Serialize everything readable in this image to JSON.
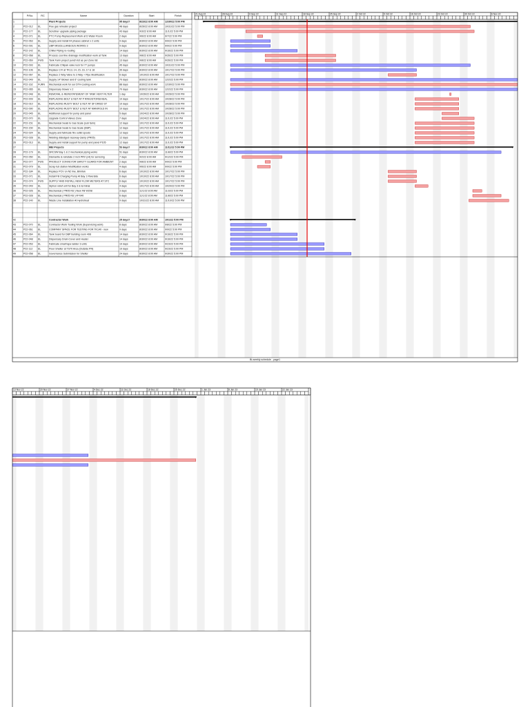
{
  "page1": {
    "table": {
      "header": [
        "P/No.",
        "RC",
        "Name",
        "Duration",
        "Start",
        "Finish"
      ],
      "rows": [
        {
          "id": "1",
          "pno": "",
          "rc": "",
          "name": "Plant Projects",
          "duration": "95 days?",
          "start": "8/23/22 8:00 AM",
          "finish": "12/30/22 5:00 PM",
          "type": "summary"
        },
        {
          "id": "2",
          "pno": "P22-012",
          "rc": "EL",
          "name": "Flue gas reheater project",
          "duration": "48 days",
          "start": "8/26/22 8:00 AM",
          "finish": "10/31/22 5:00 PM",
          "type": "task",
          "color": "#f4a0a0"
        },
        {
          "id": "3",
          "pno": "P22-177",
          "rc": "EL",
          "name": "Scrubber upgrade piping package",
          "duration": "43 days",
          "start": "9/3/22 8:00 AM",
          "finish": "11/1/22 5:00 PM",
          "type": "task",
          "color": "#f4a0a0"
        },
        {
          "id": "4",
          "pno": "P22-071",
          "rc": "EL",
          "name": "PTC Pump Replacement Work at D Water Room",
          "duration": "2 days",
          "start": "9/6/22 8:00 AM",
          "finish": "9/7/22 5:00 PM",
          "type": "task",
          "color": "#f4a0a0"
        },
        {
          "id": "5",
          "pno": "P22-063",
          "rc": "EL",
          "name": "Supply and install 04 phases cabinet x 2 units",
          "duration": "9 days",
          "start": "8/30/22 8:00 AM",
          "finish": "9/9/22 5:00 PM",
          "type": "task",
          "color": "#9a9aff"
        },
        {
          "id": "6",
          "pno": "P22-091",
          "rc": "EL",
          "name": "UBP MISCELLANEOUS WORKS 3",
          "duration": "9 days",
          "start": "8/30/22 8:00 AM",
          "finish": "9/9/22 5:00 PM",
          "type": "task",
          "color": "#9a9aff"
        },
        {
          "id": "7",
          "pno": "P22-142",
          "rc": "EL",
          "name": "Chiller Piping re-routing",
          "duration": "14 days",
          "start": "8/30/22 8:00 AM",
          "finish": "9/16/22 5:00 PM",
          "type": "task",
          "color": "#9a9aff"
        },
        {
          "id": "8",
          "pno": "P22-068",
          "rc": "EL",
          "name": "Process cool line drainage modification work at Tank",
          "duration": "13 days",
          "start": "9/8/22 8:00 AM",
          "finish": "9/26/22 5:00 PM",
          "type": "task",
          "color": "#f4a0a0"
        },
        {
          "id": "9",
          "pno": "P22-069",
          "rc": "FWS",
          "name": "Tank Farm project punch list as per Zone list",
          "duration": "13 days",
          "start": "9/8/22 8:00 AM",
          "finish": "9/26/22 5:00 PM",
          "type": "task",
          "color": "#f4a0a0"
        },
        {
          "id": "10",
          "pno": "P22-093",
          "rc": "EL",
          "name": "Fabricate Chilpak valve lock for 77 pumps",
          "duration": "45 days",
          "start": "8/30/22 8:00 AM",
          "finish": "10/31/22 5:00 PM",
          "type": "task",
          "color": "#9a9aff"
        },
        {
          "id": "11",
          "pno": "P22-106",
          "rc": "EL",
          "name": "Replace C/V at TK13, 14, 15, 16, 17 & 18",
          "duration": "35 days",
          "start": "8/30/22 8:00 AM",
          "finish": "10/17/22 5:00 PM",
          "type": "task",
          "color": "#9a9aff"
        },
        {
          "id": "12",
          "pno": "P22-067",
          "rc": "EL",
          "name": "Replace 2 Way Valve to 3 Way + Pipe Modification",
          "duration": "6 days",
          "start": "10/10/22 8:00 AM",
          "finish": "10/17/22 5:00 PM",
          "type": "task",
          "color": "#f4a0a0"
        },
        {
          "id": "13",
          "pno": "P22-049",
          "rc": "EL",
          "name": "Supply 14\" Blower and 6\" cooling tank",
          "duration": "70 days",
          "start": "8/30/22 8:00 AM",
          "finish": "12/2/22 5:00 PM",
          "type": "task",
          "color": "#9a9aff"
        },
        {
          "id": "14",
          "pno": "P22-162",
          "rc": "FURN",
          "name": "Mechanical work for our DTH cooling work",
          "duration": "88 days",
          "start": "8/30/22 8:00 AM",
          "finish": "12/30/22 5:00 PM",
          "type": "task",
          "color": "#f4a0a0"
        },
        {
          "id": "15",
          "pno": "P22-065",
          "rc": "EL",
          "name": "Dispensary blower x 2",
          "duration": "70 days",
          "start": "8/30/22 8:00 AM",
          "finish": "12/2/22 5:00 PM",
          "type": "task",
          "color": "#9a9aff"
        },
        {
          "id": "16",
          "pno": "P22-048",
          "rc": "EL",
          "name": "REMOVAL & REINSTATEMENT OF TANK VENT FILTER",
          "duration": "1 day",
          "start": "10/26/22 8:00 AM",
          "finish": "10/26/22 5:00 PM",
          "type": "task",
          "color": "#f4a0a0"
        },
        {
          "id": "17",
          "pno": "P22-009",
          "rc": "EL",
          "name": "REPLACING BOLT & NUT AT P RING/STORE/HEAL",
          "duration": "10 days",
          "start": "10/17/22 8:00 AM",
          "finish": "10/28/22 5:00 PM",
          "type": "task",
          "color": "#f4a0a0"
        },
        {
          "id": "18",
          "pno": "P22-010",
          "rc": "EL",
          "name": "REPLACING RUSTY BOLT & NUT AT SF DRIED ST",
          "duration": "10 days",
          "start": "10/17/22 8:00 AM",
          "finish": "10/28/22 5:00 PM",
          "type": "task",
          "color": "#f4a0a0"
        },
        {
          "id": "19",
          "pno": "P22-090",
          "rc": "EL",
          "name": "REPLACING RUSTY BOLT & NUT AT MANIFOLD IN",
          "duration": "10 days",
          "start": "10/17/22 8:00 AM",
          "finish": "10/28/22 5:00 PM",
          "type": "task",
          "color": "#f4a0a0"
        },
        {
          "id": "20",
          "pno": "P22-045",
          "rc": "EL",
          "name": "Additional support for pump and panel",
          "duration": "5 days",
          "start": "10/24/22 8:00 AM",
          "finish": "10/28/22 5:00 PM",
          "type": "task",
          "color": "#f4a0a0"
        },
        {
          "id": "21",
          "pno": "P22-070",
          "rc": "EL",
          "name": "Upgrade Control Valves Zone",
          "duration": "7 days",
          "start": "10/24/22 8:00 AM",
          "finish": "11/1/22 5:00 PM",
          "type": "task",
          "color": "#f4a0a0"
        },
        {
          "id": "22",
          "pno": "P22-151",
          "rc": "EL",
          "name": "Mechanical Seals to Gas Scale (sub farm)",
          "duration": "12 days",
          "start": "10/17/22 8:00 AM",
          "finish": "11/1/22 5:00 PM",
          "type": "task",
          "color": "#f4a0a0"
        },
        {
          "id": "23",
          "pno": "P22-150",
          "rc": "EL",
          "name": "Mechanical Seals to Gas Scale (DBP)",
          "duration": "12 days",
          "start": "10/17/22 8:00 AM",
          "finish": "11/1/22 5:00 PM",
          "type": "task",
          "color": "#f4a0a0"
        },
        {
          "id": "24",
          "pno": "P22-024",
          "rc": "EL",
          "name": "Supply and fabricate fire outlet spools",
          "duration": "12 days",
          "start": "10/17/22 8:00 AM",
          "finish": "11/1/22 5:00 PM",
          "type": "task",
          "color": "#f4a0a0"
        },
        {
          "id": "25",
          "pno": "P22-028",
          "rc": "EL",
          "name": "Welding dislodged raceway clamp (PR05)",
          "duration": "12 days",
          "start": "10/17/22 8:00 AM",
          "finish": "11/1/22 5:00 PM",
          "type": "task",
          "color": "#f4a0a0"
        },
        {
          "id": "26",
          "pno": "P22-013",
          "rc": "EL",
          "name": "Supply and install support for pump and panel P105",
          "duration": "12 days",
          "start": "10/17/22 8:00 AM",
          "finish": "11/1/22 5:00 PM",
          "type": "task",
          "color": "#f4a0a0"
        },
        {
          "id": "27",
          "pno": "",
          "rc": "",
          "name": "MEI Projects",
          "duration": "53 days?",
          "start": "8/30/22 8:00 AM",
          "finish": "11/11/22 5:00 PM",
          "type": "summary"
        },
        {
          "id": "28",
          "pno": "P22-179",
          "rc": "EL",
          "name": "SRCSW Bay 1 & 2 mechanical piping works",
          "duration": "51 days",
          "start": "8/30/22 8:00 AM",
          "finish": "11/8/22 5:00 PM",
          "type": "task",
          "color": "#9a9aff"
        },
        {
          "id": "29",
          "pno": "P22-050",
          "rc": "EL",
          "name": "Dismantle & reinstate 2 inch PRV (x4) for servicing",
          "duration": "7 days",
          "start": "9/2/22 8:00 AM",
          "finish": "9/12/22 5:00 PM",
          "type": "task",
          "color": "#f4a0a0"
        },
        {
          "id": "30",
          "pno": "P22-077",
          "rc": "FWS",
          "name": "PRODUCT CONVEYOR SAFETY GUARD FOR AMBIENT",
          "duration": "2 days",
          "start": "9/8/22 8:00 AM",
          "finish": "9/9/22 5:00 PM",
          "type": "task",
          "color": "#f4a0a0"
        },
        {
          "id": "31",
          "pno": "P22-079",
          "rc": "EL",
          "name": "Scrap tub station Modification works",
          "duration": "4 days",
          "start": "9/6/22 8:00 AM",
          "finish": "9/9/22 5:00 PM",
          "type": "task",
          "color": "#f4a0a0"
        },
        {
          "id": "32",
          "pno": "P22-184",
          "rc": "EL",
          "name": "Replace PCV on N2 line, Brimtek",
          "duration": "6 days",
          "start": "10/10/22 8:00 AM",
          "finish": "10/17/22 5:00 PM",
          "type": "task",
          "color": "#f4a0a0"
        },
        {
          "id": "33",
          "pno": "P22-071",
          "rc": "EL",
          "name": "Install FB Charging Pump At Bay 1 Riverside",
          "duration": "6 days",
          "start": "10/10/22 8:00 AM",
          "finish": "10/17/22 5:00 PM",
          "type": "task",
          "color": "#f4a0a0"
        },
        {
          "id": "34",
          "pno": "P22-074",
          "rc": "FWS",
          "name": "SUPPLY AND INSTALL NEW FLOW METERS AT STC",
          "duration": "6 days",
          "start": "10/10/22 8:00 AM",
          "finish": "10/17/22 5:00 PM",
          "type": "task",
          "color": "#f4a0a0"
        },
        {
          "id": "35",
          "pno": "P22-049",
          "rc": "EL",
          "name": "Siphon relief unit for Bay 3 & terminal",
          "duration": "4 days",
          "start": "10/17/22 8:00 AM",
          "finish": "10/20/22 5:00 PM",
          "type": "task",
          "color": "#f4a0a0"
        },
        {
          "id": "36",
          "pno": "P22-026",
          "rc": "EL",
          "name": "Mechanical ( PR05 NS ) New FB W208",
          "duration": "3 days",
          "start": "11/1/22 8:00 AM",
          "finish": "11/3/22 5:00 PM",
          "type": "task",
          "color": "#f4a0a0"
        },
        {
          "id": "37",
          "pno": "P22-028",
          "rc": "EL",
          "name": "Mechanical ( PR05 NS ) R=040",
          "duration": "6 days",
          "start": "11/1/22 8:00 AM",
          "finish": "11/8/22 5:00 PM",
          "type": "task",
          "color": "#f4a0a0"
        },
        {
          "id": "38",
          "pno": "P22-140",
          "rc": "EL",
          "name": "Waste Line Installation At Hydrotreat",
          "duration": "9 days",
          "start": "10/31/22 8:00 AM",
          "finish": "11/10/22 5:00 PM",
          "type": "task",
          "color": "#f4a0a0"
        },
        {
          "id": "42",
          "pno": "",
          "rc": "",
          "name": "Contractor Work",
          "duration": "25 days?",
          "start": "8/30/22 8:00 AM",
          "finish": "10/1/22 5:00 PM",
          "type": "summary"
        },
        {
          "id": "43",
          "pno": "P22-070",
          "rc": "EL",
          "name": "Contractor Work Tooling Work (Supervising work)",
          "duration": "8 days",
          "start": "8/30/22 8:00 AM",
          "finish": "9/8/22 5:00 PM",
          "type": "task",
          "color": "#9a9aff"
        },
        {
          "id": "44",
          "pno": "P22-061",
          "rc": "EL",
          "name": "COMPANY SPACE FOR TESTING FOR TK140 - new",
          "duration": "9 days",
          "start": "8/30/22 8:00 AM",
          "finish": "9/9/22 5:00 PM",
          "type": "task",
          "color": "#9a9aff"
        },
        {
          "id": "45",
          "pno": "P22-064",
          "rc": "EL",
          "name": "Tank board for DBP building room 408",
          "duration": "14 days",
          "start": "8/30/22 8:00 AM",
          "finish": "9/16/22 5:00 PM",
          "type": "task",
          "color": "#9a9aff"
        },
        {
          "id": "46",
          "pno": "P22-048",
          "rc": "EL",
          "name": "Dispensary Drain Cover and Heater",
          "duration": "14 days",
          "start": "8/30/22 8:00 AM",
          "finish": "9/16/22 5:00 PM",
          "type": "task",
          "color": "#9a9aff"
        },
        {
          "id": "47",
          "pno": "P22-053",
          "rc": "EL",
          "name": "Fabricate small tape ladder 3 units",
          "duration": "19 days",
          "start": "8/30/22 8:00 AM",
          "finish": "9/23/22 5:00 PM",
          "type": "task",
          "color": "#9a9aff"
        },
        {
          "id": "48",
          "pno": "P22-112",
          "rc": "EL",
          "name": "Floor Shelter at TS70 Area (Outside PR)",
          "duration": "19 days",
          "start": "8/30/22 8:00 AM",
          "finish": "9/23/22 5:00 PM",
          "type": "task",
          "color": "#9a9aff"
        },
        {
          "id": "49",
          "pno": "P22-058",
          "rc": "EL",
          "name": "Governance Submission for Shelter",
          "duration": "24 days",
          "start": "8/30/22 8:00 AM",
          "finish": "9/30/22 5:00 PM",
          "type": "task",
          "color": "#9a9aff"
        }
      ]
    },
    "timeline": [
      "21 Aug 22",
      "28 Aug 22",
      "4 Sep 22",
      "11 Sep 22",
      "18 Sep 22",
      "25 Sep 22",
      "2 Oct 22",
      "9 Oct 22",
      "16 Oct 22",
      "23 Oct 22",
      "30 Oct 22",
      "6 Nov 22"
    ],
    "footer": "Bi-weekly schedule - page1"
  },
  "page2": {
    "timeline": [
      "13 Nov 22",
      "20 Nov 22",
      "27 Nov 22",
      "4 Dec 22",
      "11 Dec 22",
      "18 Dec 22",
      "25 Dec 22",
      "1 Jan 23",
      "8 Jan 23",
      "15 Jan 23",
      "22 Jan 23"
    ]
  }
}
